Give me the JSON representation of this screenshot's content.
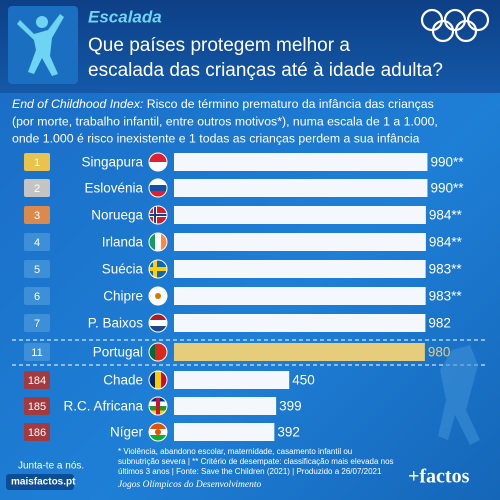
{
  "header": {
    "sport": "Escalada",
    "title_lines": [
      "Que países protegem melhor a",
      "escalada das crianças até à idade adulta?"
    ]
  },
  "chart_data": {
    "type": "hbar",
    "subtitle_lead": "End of Childhood Index:",
    "subtitle_lines": [
      "Risco de término prematuro da infância das crianças",
      "(por morte, trabalho infantil, entre outros motivos*), numa escala de 1 a 1.000,",
      "onde 1.000 é risco inexistente e 1 todas as crianças perdem a sua infância"
    ],
    "ranks": [
      1,
      2,
      3,
      4,
      5,
      6,
      7,
      11,
      184,
      185,
      186
    ],
    "badge_colors": [
      "#e9c34c",
      "#c4c4c4",
      "#d98a4c",
      "#3d90d8",
      "#3d90d8",
      "#3d90d8",
      "#3d90d8",
      "#3d90d8",
      "#a23a3e",
      "#a23a3e",
      "#a23a3e"
    ],
    "categories": [
      "Singapura",
      "Eslovénia",
      "Noruega",
      "Irlanda",
      "Suécia",
      "Chipre",
      "P. Baixos",
      "Portugal",
      "Chade",
      "R.C. Africana",
      "Níger"
    ],
    "values": [
      990,
      990,
      984,
      984,
      983,
      983,
      982,
      980,
      450,
      399,
      392
    ],
    "value_labels": [
      "990**",
      "990**",
      "984**",
      "984**",
      "983**",
      "983**",
      "982",
      "980",
      "450",
      "399",
      "392"
    ],
    "color": "#f4f8fc",
    "highlight_color": "#e6cd7c",
    "highlight_index": 7,
    "xlim": [
      0,
      1000
    ]
  },
  "footer": {
    "notes": [
      "* Violência, abandono escolar, maternidade, casamento infantil ou",
      "subnutrição severa | ** Critério de desempate: classificação mais elevada nos",
      "últimos 3 anos | Fonte: Save the Children (2021) | Produzido a 26/07/2021"
    ],
    "join": "Junta-te a nós.",
    "site": "maisfactos.pt",
    "campaign": "Jogos Olímpicos do Desenvolvimento",
    "brand": "+factos"
  }
}
